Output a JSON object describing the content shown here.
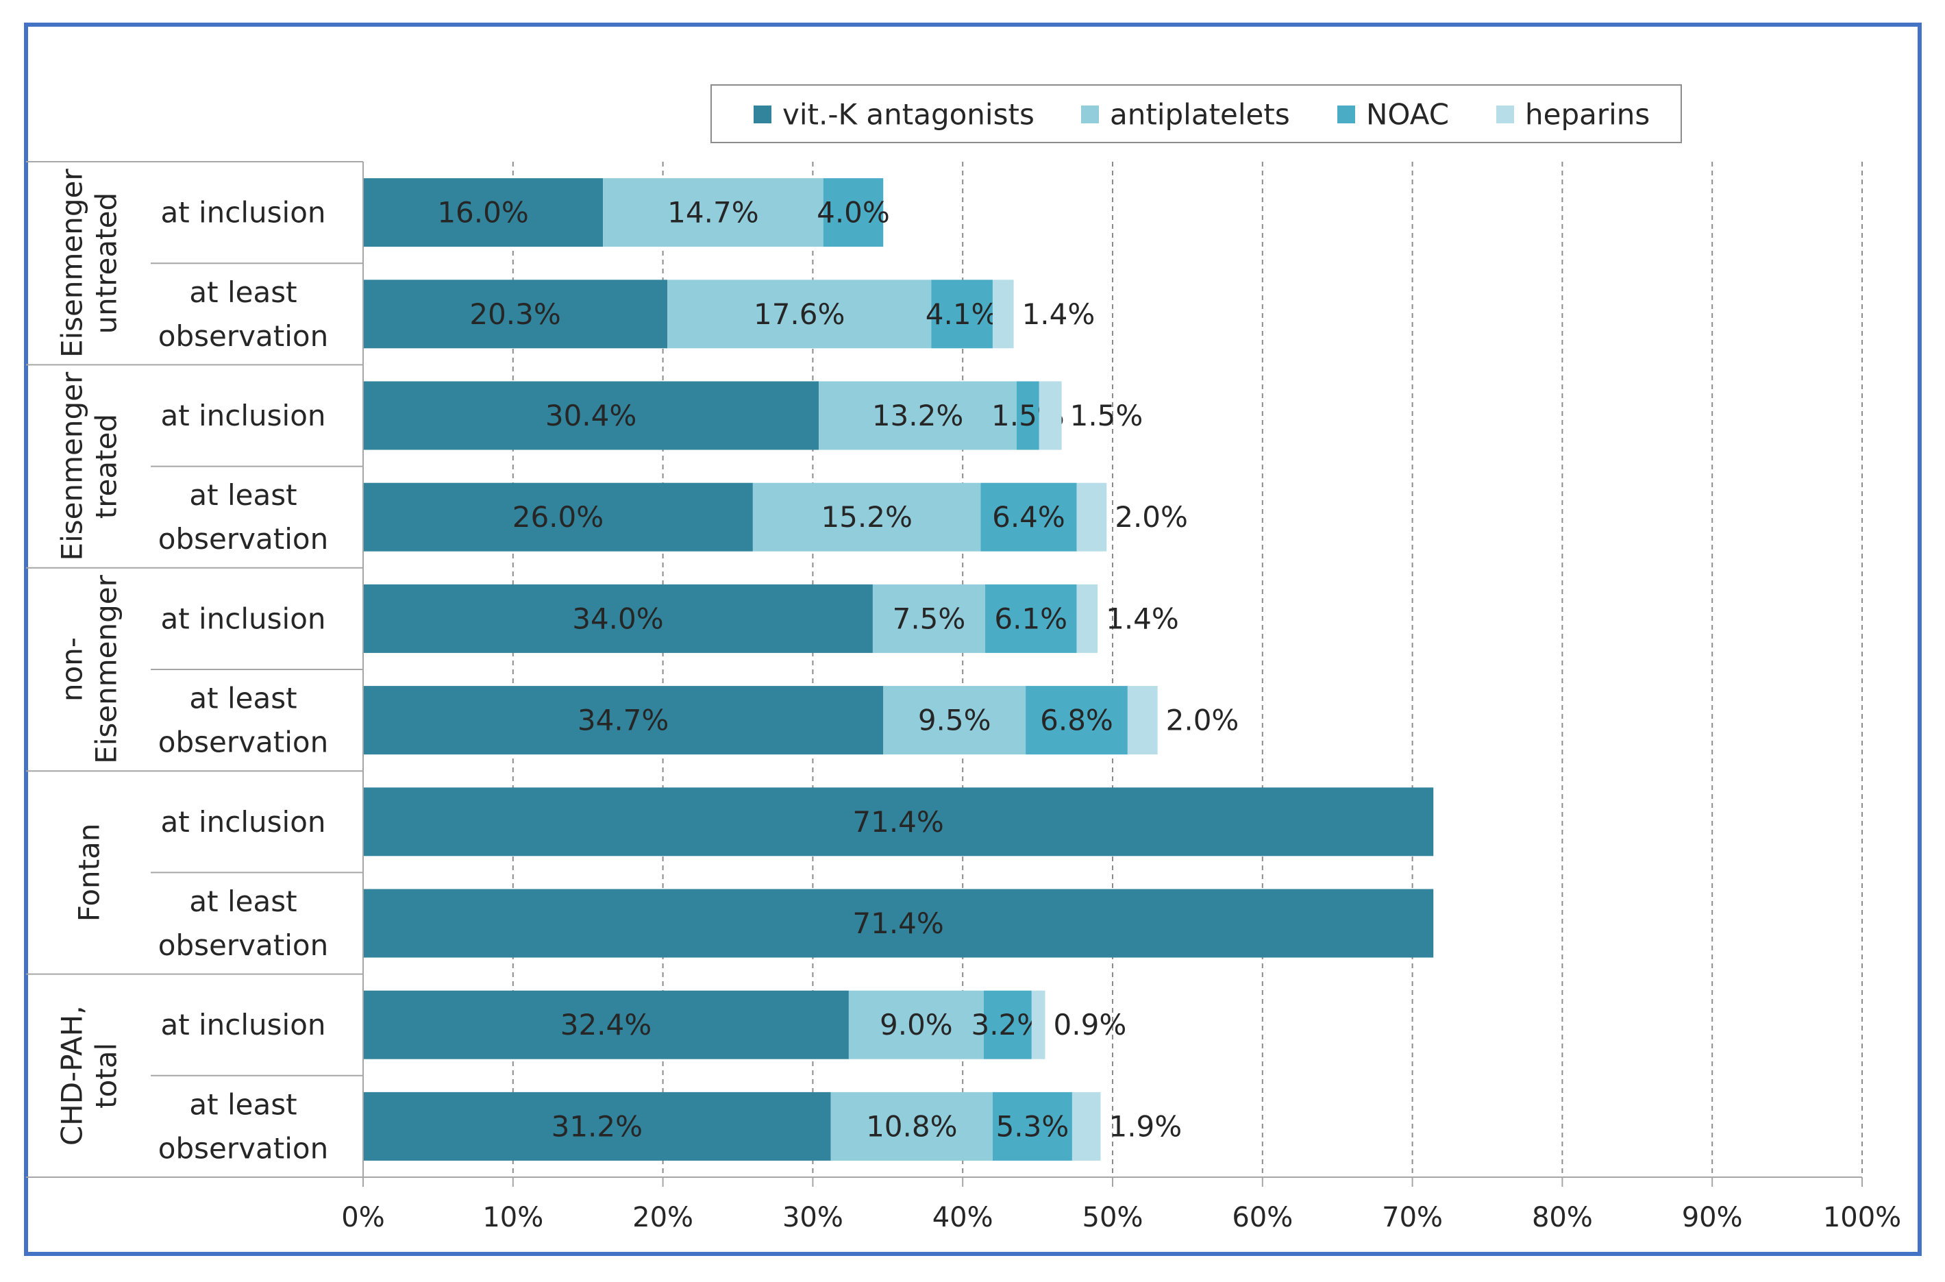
{
  "chart_data": {
    "type": "bar",
    "orientation": "horizontal",
    "stacked": true,
    "title": "",
    "xlabel": "",
    "ylabel": "",
    "xlim": [
      0,
      100
    ],
    "x_ticks": [
      "0%",
      "10%",
      "20%",
      "30%",
      "40%",
      "50%",
      "60%",
      "70%",
      "80%",
      "90%",
      "100%"
    ],
    "grid": "vertical dashed",
    "legend_position": "top",
    "series": [
      {
        "name": "vit.-K antagonists",
        "color": "#31849B",
        "values": [
          16.0,
          20.3,
          30.4,
          26.0,
          34.0,
          34.7,
          71.4,
          71.4,
          32.4,
          31.2
        ],
        "labels": [
          "16.0%",
          "20.3%",
          "30.4%",
          "26.0%",
          "34.0%",
          "34.7%",
          "71.4%",
          "71.4%",
          "32.4%",
          "31.2%"
        ]
      },
      {
        "name": "antiplatelets",
        "color": "#92CDDC",
        "values": [
          14.7,
          17.6,
          13.2,
          15.2,
          7.5,
          9.5,
          0,
          0,
          9.0,
          10.8
        ],
        "labels": [
          "14.7%",
          "17.6%",
          "13.2%",
          "15.2%",
          "7.5%",
          "9.5%",
          "",
          "",
          "9.0%",
          "10.8%"
        ]
      },
      {
        "name": "NOAC",
        "color": "#4BACC6",
        "values": [
          4.0,
          4.1,
          1.5,
          6.4,
          6.1,
          6.8,
          0,
          0,
          3.2,
          5.3
        ],
        "labels": [
          "4.0%",
          "4.1%",
          "1.5%",
          "6.4%",
          "6.1%",
          "6.8%",
          "",
          "",
          "3.2%",
          "5.3%"
        ]
      },
      {
        "name": "heparins",
        "color": "#B7DEE8",
        "values": [
          0,
          1.4,
          1.5,
          2.0,
          1.4,
          2.0,
          0,
          0,
          0.9,
          1.9
        ],
        "labels": [
          "",
          "1.4%",
          "1.5%",
          "2.0%",
          "1.4%",
          "2.0%",
          "",
          "",
          "0.9%",
          "1.9%"
        ]
      }
    ],
    "rows": [
      {
        "label": [
          "at inclusion"
        ]
      },
      {
        "label": [
          "at least",
          "observation"
        ]
      },
      {
        "label": [
          "at inclusion"
        ]
      },
      {
        "label": [
          "at least",
          "observation"
        ]
      },
      {
        "label": [
          "at inclusion"
        ]
      },
      {
        "label": [
          "at least",
          "observation"
        ]
      },
      {
        "label": [
          "at inclusion"
        ]
      },
      {
        "label": [
          "at least",
          "observation"
        ]
      },
      {
        "label": [
          "at inclusion"
        ]
      },
      {
        "label": [
          "at least",
          "observation"
        ]
      }
    ],
    "groups": [
      {
        "label": [
          "Eisenmenger",
          "untreated"
        ],
        "rows": [
          0,
          1
        ]
      },
      {
        "label": [
          "Eisenmenger",
          "treated"
        ],
        "rows": [
          2,
          3
        ]
      },
      {
        "label": [
          "non-",
          "Eisenmenger"
        ],
        "rows": [
          4,
          5
        ]
      },
      {
        "label": [
          "Fontan"
        ],
        "rows": [
          6,
          7
        ]
      },
      {
        "label": [
          "CHD-PAH,",
          "total"
        ],
        "rows": [
          8,
          9
        ]
      }
    ],
    "frame_color": "#4472C4"
  }
}
